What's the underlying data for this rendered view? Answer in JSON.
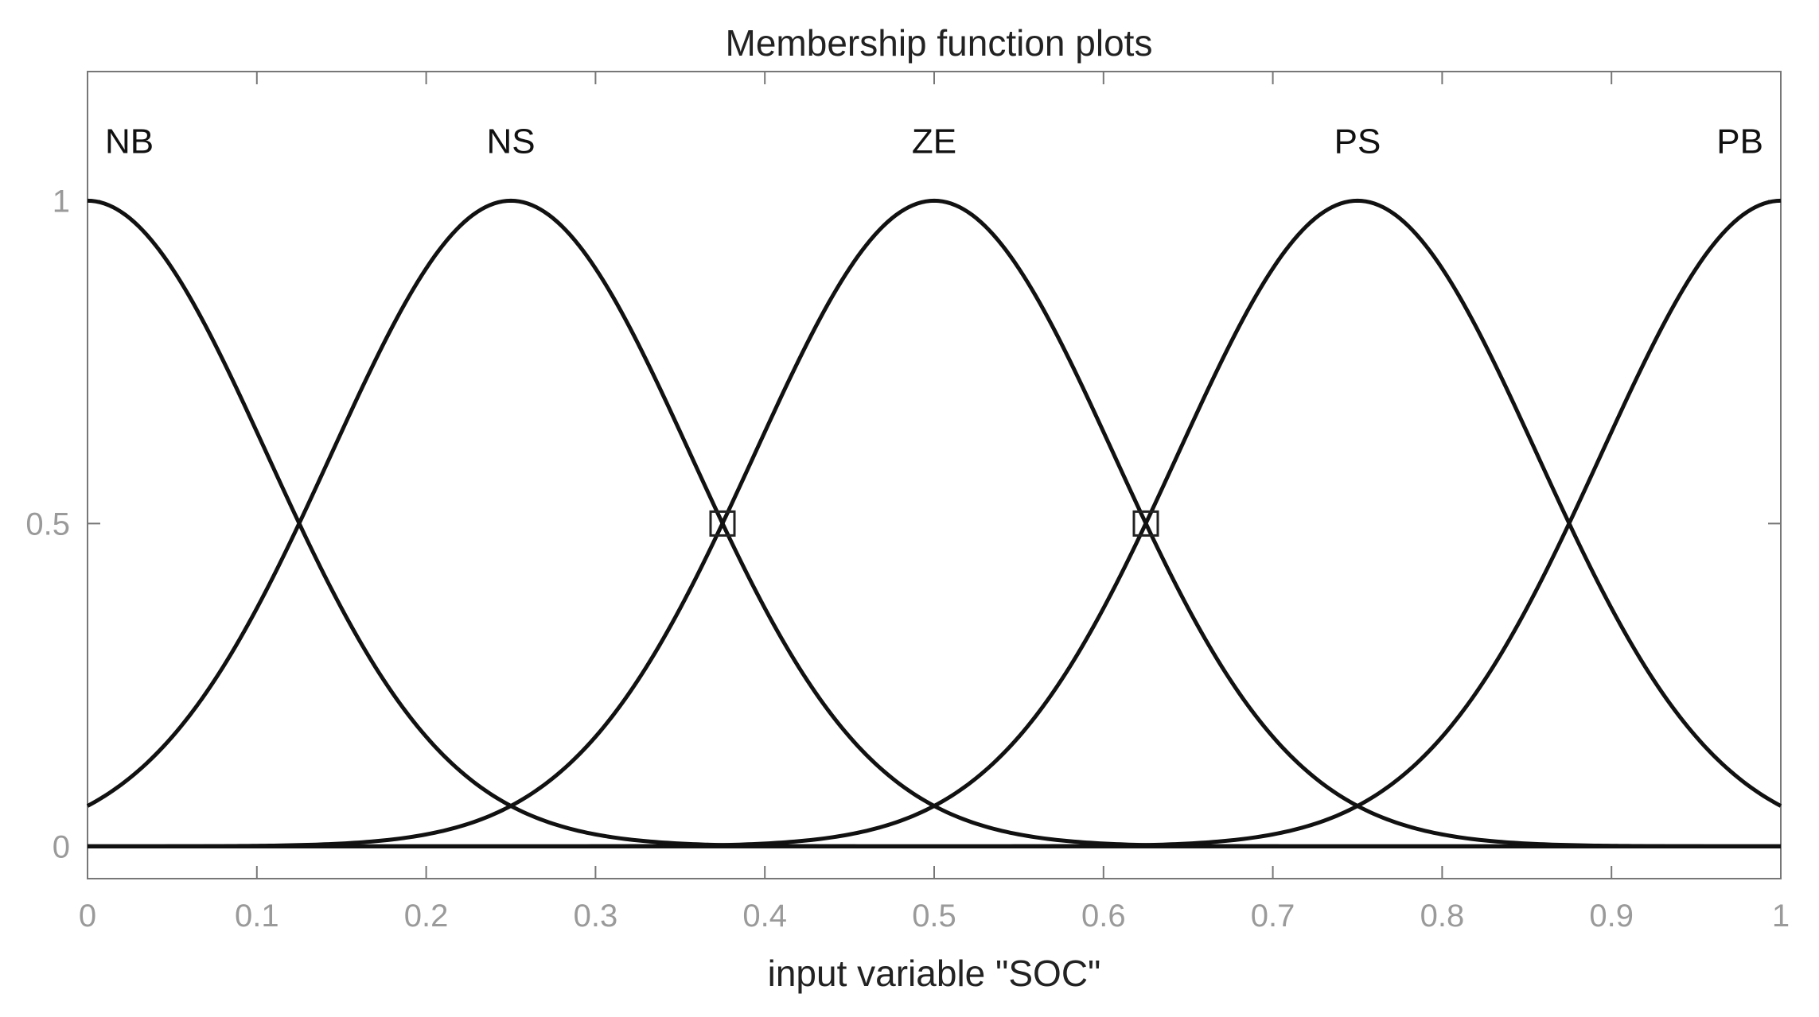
{
  "chart_data": {
    "type": "line",
    "title": "Membership function plots",
    "xlabel": "input variable \"SOC\"",
    "ylabel": "",
    "xlim": [
      0,
      1
    ],
    "ylim": [
      -0.05,
      1.2
    ],
    "x_ticks": [
      0,
      0.1,
      0.2,
      0.3,
      0.4,
      0.5,
      0.6,
      0.7,
      0.8,
      0.9,
      1
    ],
    "x_tick_labels": [
      "0",
      "0.1",
      "0.2",
      "0.3",
      "0.4",
      "0.5",
      "0.6",
      "0.7",
      "0.8",
      "0.9",
      "1"
    ],
    "y_ticks": [
      0,
      0.5,
      1
    ],
    "y_tick_labels": [
      "0",
      "0.5",
      "1"
    ],
    "grid": false,
    "curve_shape": "gaussian",
    "series": [
      {
        "name": "NB",
        "center": 0,
        "sigma": 0.1062
      },
      {
        "name": "NS",
        "center": 0.25,
        "sigma": 0.1062
      },
      {
        "name": "ZE",
        "center": 0.5,
        "sigma": 0.1062
      },
      {
        "name": "PS",
        "center": 0.75,
        "sigma": 0.1062
      },
      {
        "name": "PB",
        "center": 1,
        "sigma": 0.1062
      }
    ],
    "markers": [
      {
        "x": 0.375,
        "y": 0.5
      },
      {
        "x": 0.625,
        "y": 0.5
      }
    ],
    "baseline_y": 0
  }
}
